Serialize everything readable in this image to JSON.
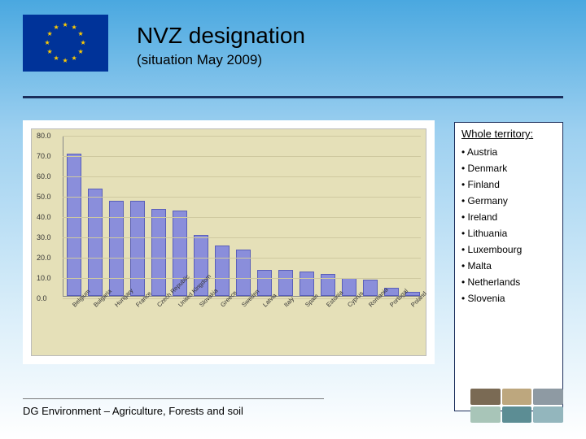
{
  "title": "NVZ designation",
  "subtitle": "(situation May 2009)",
  "footer": "DG Environment – Agriculture, Forests and soil",
  "side_panel": {
    "heading": "Whole territory:",
    "items": [
      "Austria",
      "Denmark",
      "Finland",
      "Germany",
      "Ireland",
      "Lithuania",
      "Luxembourg",
      "Malta",
      "Netherlands",
      "Slovenia"
    ]
  },
  "chart": {
    "type": "bar",
    "ylim": [
      0,
      80
    ],
    "ytick_step": 10,
    "yticks": [
      "0.0",
      "10.0",
      "20.0",
      "30.0",
      "40.0",
      "50.0",
      "60.0",
      "70.0",
      "80.0"
    ],
    "bar_color": "#8a8edb",
    "bar_border": "#5a5fb8",
    "background_color": "#e5e0b8",
    "grid_color": "#cfc9a0",
    "axis_color": "#888888",
    "label_fontsize": 9,
    "xlabel_fontsize": 7.5,
    "xlabel_rotation": -45,
    "bar_width_ratio": 0.68,
    "categories": [
      "Belgium",
      "Bulgaria",
      "Hungary",
      "France",
      "Czech Republic",
      "United Kingdom",
      "Slovakia",
      "Greece",
      "Sweden",
      "Latvia",
      "Italy",
      "Spain",
      "Estonia",
      "Cyprus",
      "Romania",
      "Portugal",
      "Poland"
    ],
    "values": [
      70,
      53,
      47,
      47,
      43,
      42,
      30,
      25,
      23,
      13,
      13,
      12,
      11,
      9,
      8,
      4,
      2
    ]
  },
  "flag": {
    "background": "#003399",
    "star_color": "#ffcc00",
    "star_count": 12
  },
  "logo_colors": [
    "#7a6a54",
    "#bda77e",
    "#8e9aa3",
    "#a8c5b8",
    "#5c8d94",
    "#93b6bd"
  ]
}
